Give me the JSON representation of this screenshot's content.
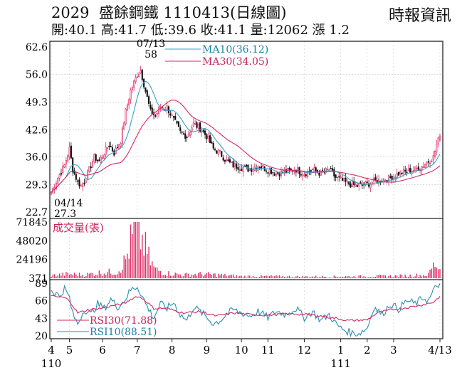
{
  "header": {
    "code": "2029",
    "name": "盛餘鋼鐵",
    "date": "1110413",
    "chart_kind": "(日線圖)",
    "source": "時報資訊",
    "ohlc": [
      {
        "label": "開:",
        "value": "40.1"
      },
      {
        "label": "高:",
        "value": "41.7"
      },
      {
        "label": "低:",
        "value": "39.6"
      },
      {
        "label": "收:",
        "value": "41.1"
      },
      {
        "label": "量:",
        "value": "12062"
      },
      {
        "label": "漲",
        "value": "1.2"
      }
    ]
  },
  "colors": {
    "up": "#e0306a",
    "down": "#111111",
    "ma10": "#3aa0c8",
    "ma30": "#d42a64",
    "rsi30": "#d42a64",
    "rsi10": "#2a8fb0",
    "volume": "#e0306a",
    "frame": "#222222"
  },
  "chart_data": [
    {
      "type": "candlestick",
      "name": "price",
      "y_ticks": [
        "62.6",
        "56.0",
        "49.3",
        "42.6",
        "36.0",
        "29.3",
        "22.7"
      ],
      "ylim": [
        22.7,
        62.6
      ],
      "x_ticks": [
        {
          "label": "4",
          "day": 0
        },
        {
          "label": "5",
          "day": 11
        },
        {
          "label": "6",
          "day": 31
        },
        {
          "label": "7",
          "day": 52
        },
        {
          "label": "8",
          "day": 73
        },
        {
          "label": "9",
          "day": 94
        },
        {
          "label": "10",
          "day": 115
        },
        {
          "label": "11",
          "day": 131
        },
        {
          "label": "12",
          "day": 153
        },
        {
          "label": "1",
          "day": 175
        },
        {
          "label": "2",
          "day": 191
        },
        {
          "label": "3",
          "day": 207
        },
        {
          "label": "4/13",
          "day": 235
        }
      ],
      "year_labels": [
        {
          "label": "110",
          "day": 0
        },
        {
          "label": "111",
          "day": 175
        }
      ],
      "anchors": [
        [
          0,
          27.5
        ],
        [
          4,
          31
        ],
        [
          8,
          34
        ],
        [
          11,
          38
        ],
        [
          13,
          33
        ],
        [
          16,
          30
        ],
        [
          18,
          29
        ],
        [
          20,
          30
        ],
        [
          23,
          33
        ],
        [
          26,
          36
        ],
        [
          29,
          35
        ],
        [
          32,
          37
        ],
        [
          35,
          39
        ],
        [
          38,
          37
        ],
        [
          42,
          40
        ],
        [
          45,
          47
        ],
        [
          48,
          52
        ],
        [
          52,
          56
        ],
        [
          54,
          57
        ],
        [
          57,
          52
        ],
        [
          60,
          47
        ],
        [
          63,
          46
        ],
        [
          66,
          48
        ],
        [
          70,
          48
        ],
        [
          74,
          45
        ],
        [
          78,
          42
        ],
        [
          82,
          41
        ],
        [
          86,
          44
        ],
        [
          90,
          43
        ],
        [
          94,
          41
        ],
        [
          98,
          38
        ],
        [
          102,
          37
        ],
        [
          106,
          35
        ],
        [
          110,
          34
        ],
        [
          115,
          33.5
        ],
        [
          120,
          33
        ],
        [
          125,
          34
        ],
        [
          131,
          33
        ],
        [
          136,
          32
        ],
        [
          142,
          32.5
        ],
        [
          148,
          33
        ],
        [
          153,
          32
        ],
        [
          158,
          33
        ],
        [
          163,
          32
        ],
        [
          168,
          33
        ],
        [
          172,
          31
        ],
        [
          175,
          30.5
        ],
        [
          180,
          29.5
        ],
        [
          185,
          29
        ],
        [
          191,
          29.5
        ],
        [
          195,
          30
        ],
        [
          200,
          30.5
        ],
        [
          205,
          31
        ],
        [
          210,
          32
        ],
        [
          215,
          32.5
        ],
        [
          220,
          33
        ],
        [
          225,
          34
        ],
        [
          228,
          35
        ],
        [
          231,
          36
        ],
        [
          233,
          39
        ],
        [
          235,
          41.1
        ]
      ],
      "annotations": [
        {
          "label": "07/13",
          "day": 54
        },
        {
          "label": "58",
          "day": 54
        },
        {
          "label": "04/14",
          "day": 0
        },
        {
          "label": "27.3",
          "day": 0
        }
      ],
      "legend": [
        {
          "name": "MA10",
          "value": "(36.12)"
        },
        {
          "name": "MA30",
          "value": "(34.05)"
        }
      ]
    },
    {
      "type": "bar",
      "name": "volume",
      "title": "成交量(張)",
      "y_ticks": [
        "71845",
        "48020",
        "24196",
        "371"
      ],
      "ylim": [
        371,
        71845
      ],
      "anchors": [
        [
          0,
          4000
        ],
        [
          10,
          6000
        ],
        [
          20,
          5000
        ],
        [
          30,
          8000
        ],
        [
          40,
          9000
        ],
        [
          45,
          25000
        ],
        [
          48,
          48000
        ],
        [
          50,
          60000
        ],
        [
          52,
          71845
        ],
        [
          54,
          55000
        ],
        [
          57,
          40000
        ],
        [
          60,
          22000
        ],
        [
          63,
          12000
        ],
        [
          70,
          7000
        ],
        [
          80,
          5000
        ],
        [
          90,
          6000
        ],
        [
          100,
          5000
        ],
        [
          115,
          3000
        ],
        [
          130,
          3000
        ],
        [
          150,
          2500
        ],
        [
          170,
          2500
        ],
        [
          190,
          3000
        ],
        [
          210,
          3500
        ],
        [
          228,
          5000
        ],
        [
          230,
          14000
        ],
        [
          232,
          20000
        ],
        [
          234,
          16000
        ],
        [
          235,
          12062
        ]
      ]
    },
    {
      "type": "line",
      "name": "rsi",
      "y_ticks": [
        "89",
        "66",
        "43",
        "20"
      ],
      "ylim": [
        20,
        89
      ],
      "series": [
        {
          "name": "RSI10",
          "value": "(88.51)",
          "anchors": [
            [
              0,
              80
            ],
            [
              5,
              72
            ],
            [
              8,
              82
            ],
            [
              11,
              70
            ],
            [
              13,
              48
            ],
            [
              16,
              36
            ],
            [
              20,
              55
            ],
            [
              24,
              48
            ],
            [
              28,
              62
            ],
            [
              32,
              56
            ],
            [
              36,
              68
            ],
            [
              40,
              58
            ],
            [
              44,
              66
            ],
            [
              48,
              80
            ],
            [
              52,
              85
            ],
            [
              55,
              72
            ],
            [
              58,
              58
            ],
            [
              62,
              44
            ],
            [
              66,
              62
            ],
            [
              70,
              56
            ],
            [
              74,
              64
            ],
            [
              78,
              48
            ],
            [
              82,
              40
            ],
            [
              86,
              58
            ],
            [
              90,
              52
            ],
            [
              94,
              44
            ],
            [
              98,
              36
            ],
            [
              102,
              40
            ],
            [
              106,
              48
            ],
            [
              110,
              54
            ],
            [
              115,
              50
            ],
            [
              120,
              46
            ],
            [
              125,
              52
            ],
            [
              131,
              44
            ],
            [
              136,
              52
            ],
            [
              142,
              48
            ],
            [
              148,
              56
            ],
            [
              153,
              44
            ],
            [
              158,
              52
            ],
            [
              163,
              40
            ],
            [
              168,
              48
            ],
            [
              172,
              36
            ],
            [
              175,
              30
            ],
            [
              180,
              25
            ],
            [
              185,
              22
            ],
            [
              191,
              30
            ],
            [
              195,
              58
            ],
            [
              200,
              48
            ],
            [
              205,
              62
            ],
            [
              210,
              55
            ],
            [
              215,
              66
            ],
            [
              220,
              62
            ],
            [
              225,
              70
            ],
            [
              228,
              66
            ],
            [
              231,
              78
            ],
            [
              233,
              86
            ],
            [
              235,
              88.5
            ]
          ]
        },
        {
          "name": "RSI30",
          "value": "(71.88)",
          "anchors": [
            [
              0,
              72
            ],
            [
              8,
              70
            ],
            [
              11,
              66
            ],
            [
              16,
              50
            ],
            [
              22,
              54
            ],
            [
              30,
              56
            ],
            [
              38,
              60
            ],
            [
              44,
              62
            ],
            [
              48,
              68
            ],
            [
              52,
              72
            ],
            [
              56,
              68
            ],
            [
              62,
              56
            ],
            [
              70,
              56
            ],
            [
              80,
              50
            ],
            [
              90,
              52
            ],
            [
              100,
              46
            ],
            [
              110,
              50
            ],
            [
              120,
              48
            ],
            [
              131,
              47
            ],
            [
              142,
              49
            ],
            [
              153,
              48
            ],
            [
              163,
              46
            ],
            [
              172,
              43
            ],
            [
              180,
              40
            ],
            [
              191,
              41
            ],
            [
              197,
              50
            ],
            [
              205,
              54
            ],
            [
              215,
              57
            ],
            [
              225,
              61
            ],
            [
              231,
              64
            ],
            [
              235,
              71.9
            ]
          ]
        }
      ]
    }
  ]
}
